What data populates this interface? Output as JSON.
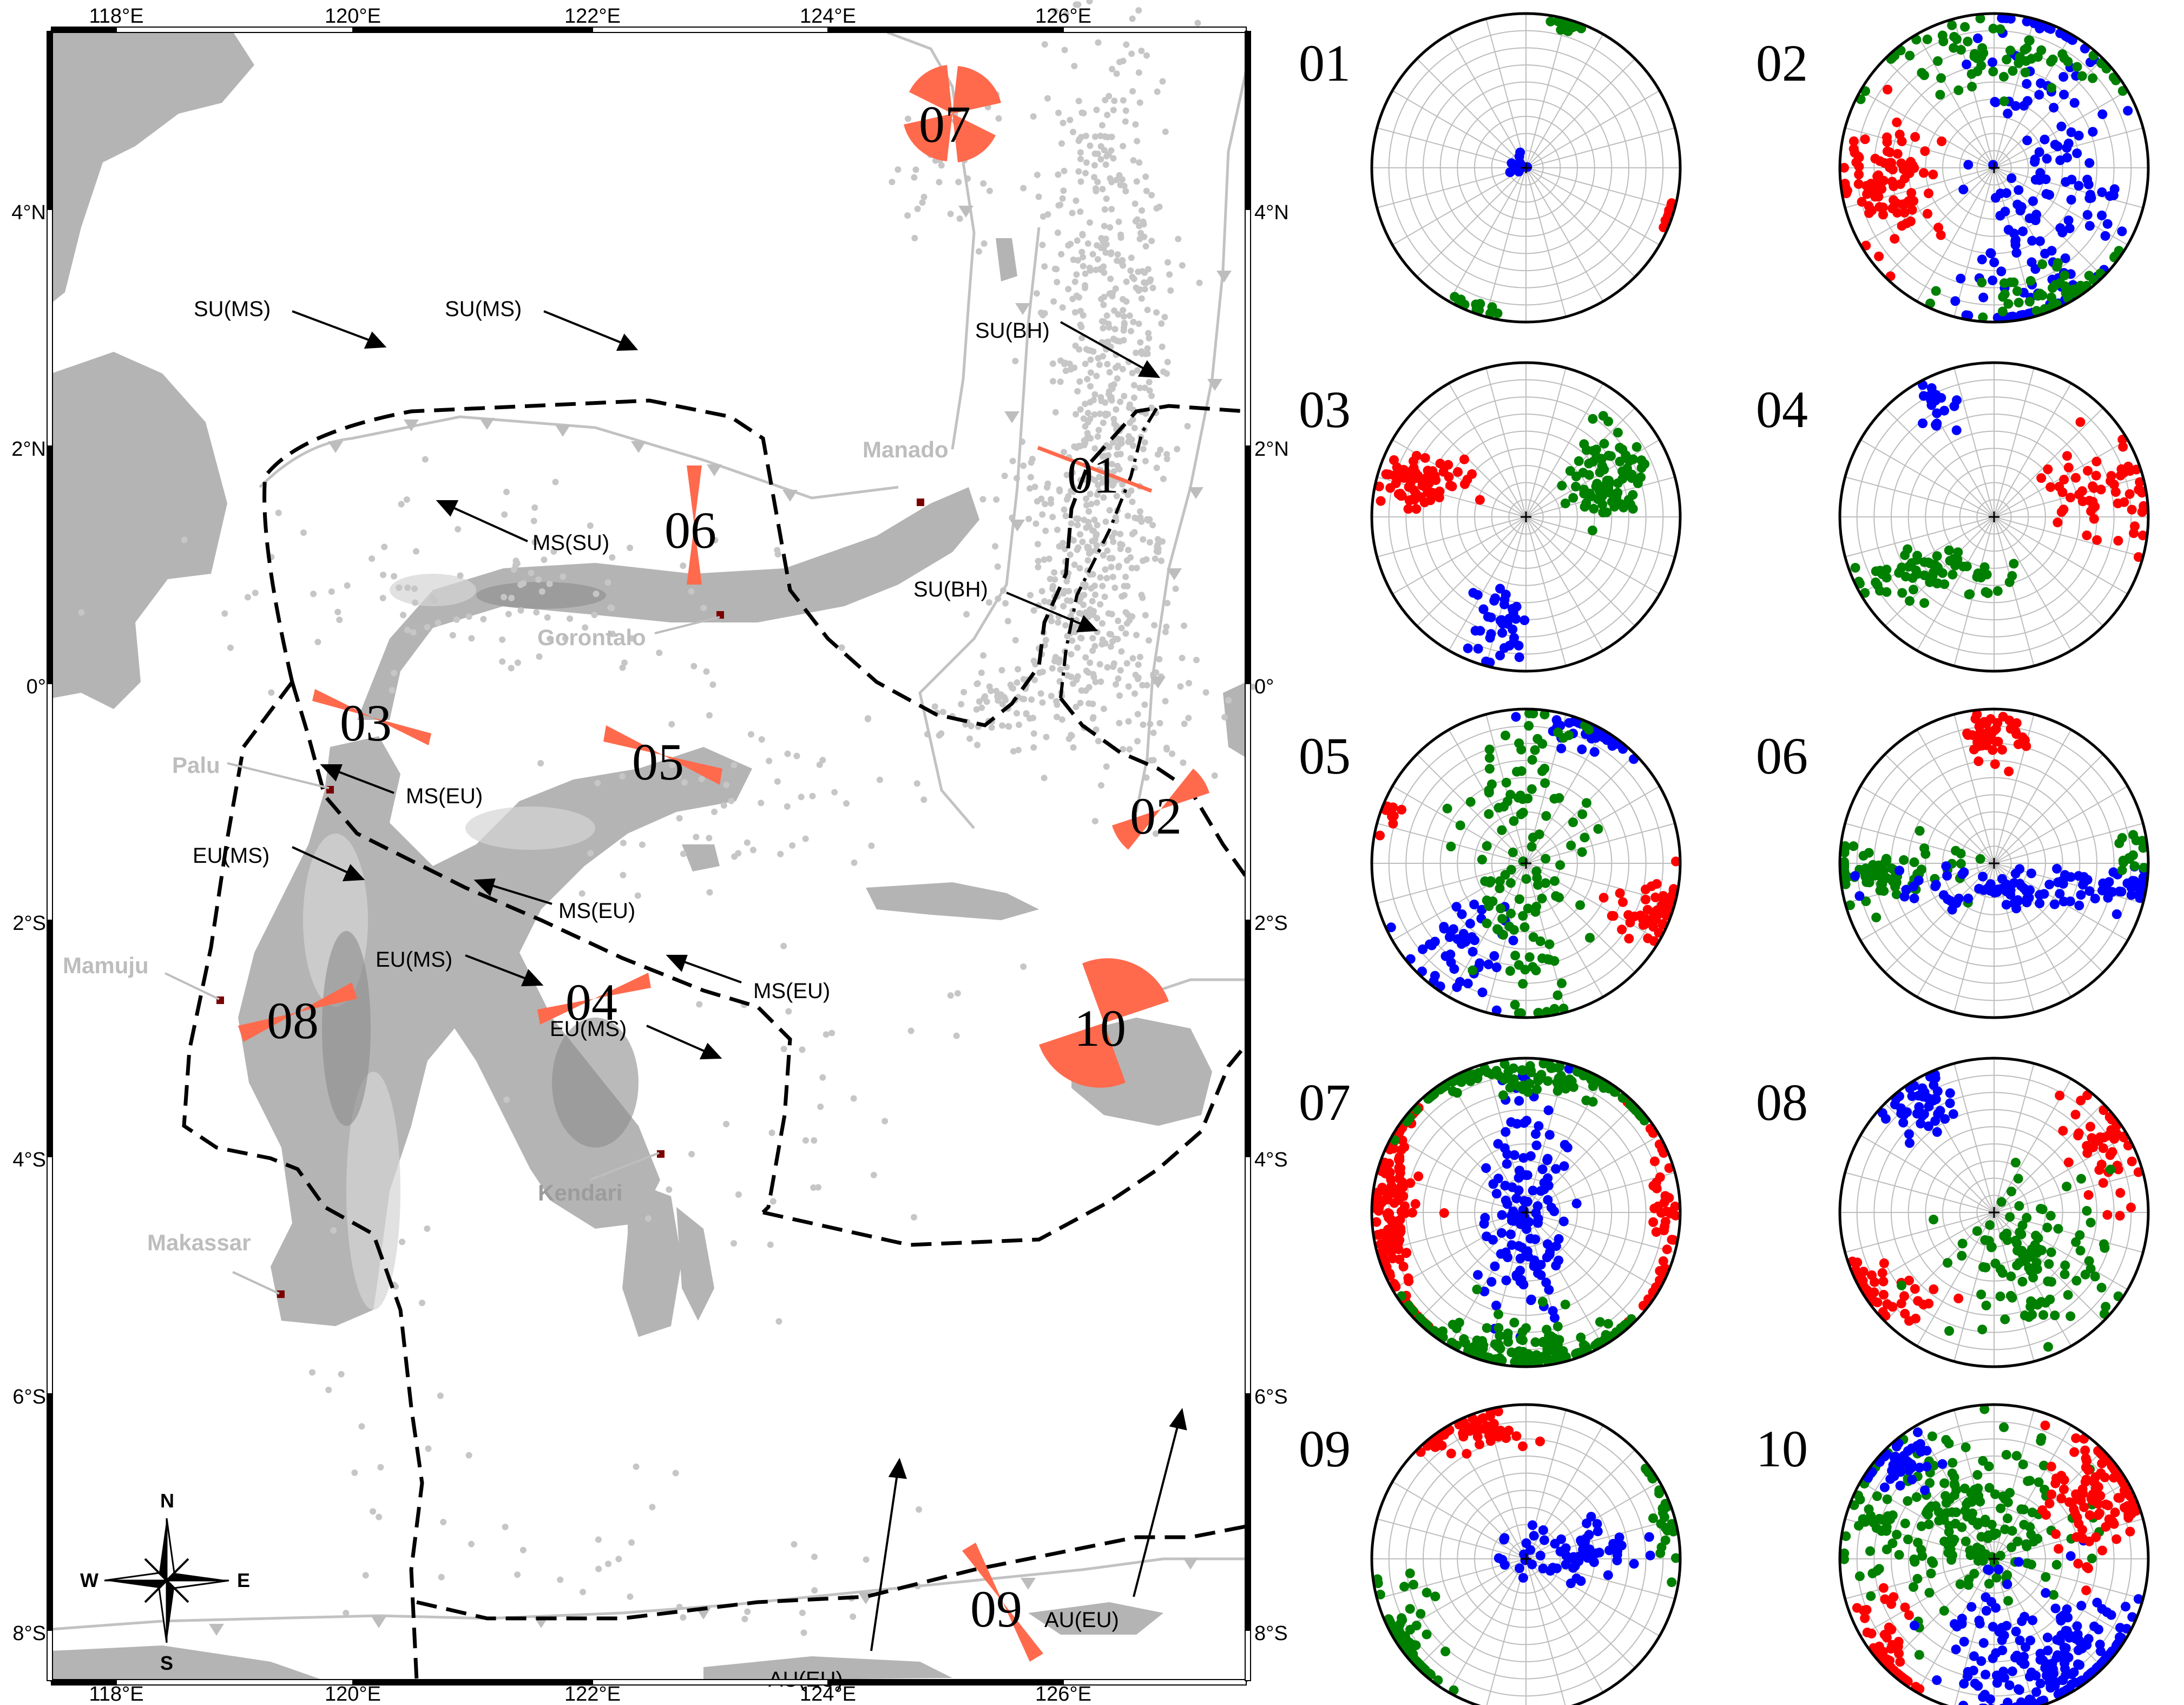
{
  "map": {
    "lon_ticks": [
      "118°E",
      "120°E",
      "122°E",
      "124°E",
      "126°E"
    ],
    "lat_ticks": [
      "4°N",
      "2°N",
      "0°",
      "2°S",
      "4°S",
      "6°S",
      "8°S"
    ],
    "cities": [
      "Manado",
      "Gorontalo",
      "Palu",
      "Mamuju",
      "Kendari",
      "Makassar"
    ],
    "motion_labels": [
      "SU(MS)",
      "SU(MS)",
      "SU(BH)",
      "SU(BH)",
      "MS(SU)",
      "MS(EU)",
      "EU(MS)",
      "MS(EU)",
      "EU(MS)",
      "MS(EU)",
      "EU(MS)",
      "AU(EU)",
      "AU(EU)"
    ],
    "region_ids": [
      "01",
      "02",
      "03",
      "04",
      "05",
      "06",
      "07",
      "08",
      "09",
      "10"
    ],
    "compass": {
      "n": "N",
      "s": "S",
      "e": "E",
      "w": "W"
    },
    "colors": {
      "land_light": "#d8d8d8",
      "land_dark": "#8a8a8a",
      "rose": "#ff6a4d",
      "boundary": "#000000",
      "fault": "#c0c0c0",
      "seismicity": "#c4c4c4"
    }
  },
  "stereonets": {
    "labels": [
      "01",
      "02",
      "03",
      "04",
      "05",
      "06",
      "07",
      "08",
      "09",
      "10"
    ],
    "series_colors": {
      "sigma1": "#ff0000",
      "sigma2": "#008000",
      "sigma3": "#0000ff"
    }
  }
}
